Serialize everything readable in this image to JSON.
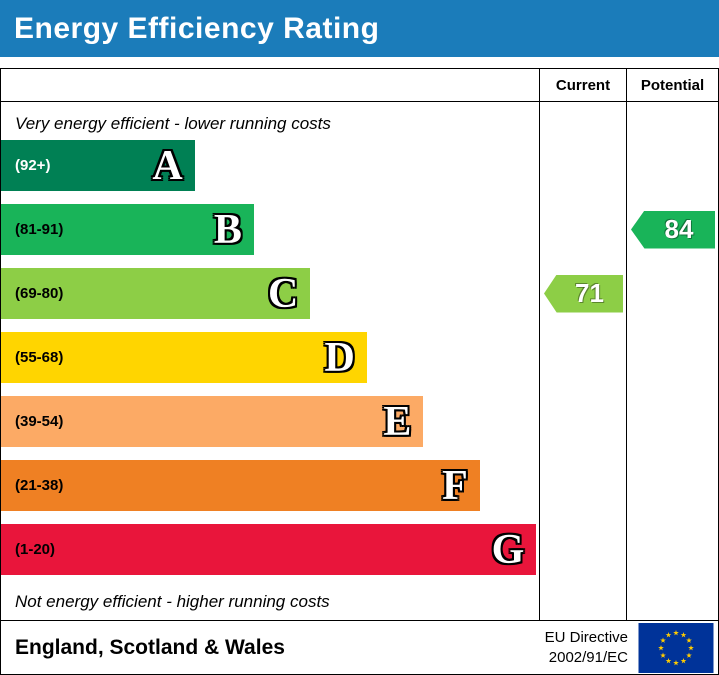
{
  "title": "Energy Efficiency Rating",
  "columns": {
    "current": "Current",
    "potential": "Potential"
  },
  "notes": {
    "top": "Very energy efficient - lower running costs",
    "bottom": "Not energy efficient - higher running costs"
  },
  "footer": {
    "region": "England, Scotland & Wales",
    "directive_line1": "EU Directive",
    "directive_line2": "2002/91/EC"
  },
  "colors": {
    "banner_blue": "#1b7cba",
    "border": "#000000",
    "eu_flag_blue": "#003399",
    "eu_flag_stars": "#ffcc00"
  },
  "chart_data": {
    "type": "bar",
    "title": "Energy Efficiency Rating",
    "xlabel": "",
    "ylabel": "",
    "axis_range": [
      1,
      100
    ],
    "legend": "none",
    "bands": [
      {
        "letter": "A",
        "range": "(92+)",
        "min": 92,
        "max": 100,
        "color": "#008054",
        "label_color": "#ffffff",
        "width_pct": 36
      },
      {
        "letter": "B",
        "range": "(81-91)",
        "min": 81,
        "max": 91,
        "color": "#19b459",
        "label_color": "#000000",
        "width_pct": 47
      },
      {
        "letter": "C",
        "range": "(69-80)",
        "min": 69,
        "max": 80,
        "color": "#8dce46",
        "label_color": "#000000",
        "width_pct": 57.5
      },
      {
        "letter": "D",
        "range": "(55-68)",
        "min": 55,
        "max": 68,
        "color": "#ffd500",
        "label_color": "#000000",
        "width_pct": 68
      },
      {
        "letter": "E",
        "range": "(39-54)",
        "min": 39,
        "max": 54,
        "color": "#fcaa65",
        "label_color": "#000000",
        "width_pct": 78.5
      },
      {
        "letter": "F",
        "range": "(21-38)",
        "min": 21,
        "max": 38,
        "color": "#ef8023",
        "label_color": "#000000",
        "width_pct": 89
      },
      {
        "letter": "G",
        "range": "(1-20)",
        "min": 1,
        "max": 20,
        "color": "#e9153b",
        "label_color": "#000000",
        "width_pct": 99.5
      }
    ],
    "current": {
      "value": 71,
      "band": "C",
      "color": "#8dce46"
    },
    "potential": {
      "value": 84,
      "band": "B",
      "color": "#19b459"
    }
  }
}
